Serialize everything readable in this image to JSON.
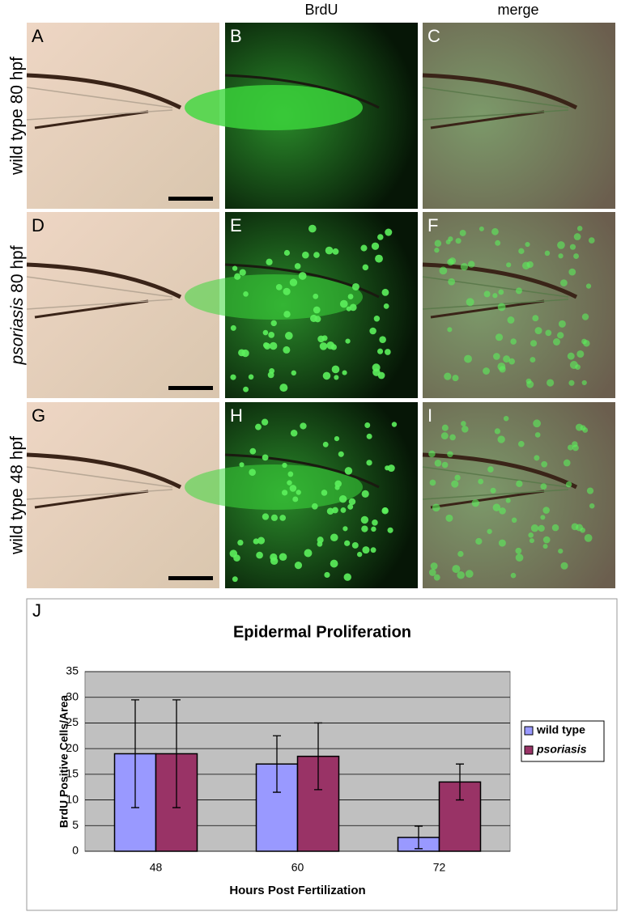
{
  "figure": {
    "column_headers": [
      "BrdU",
      "merge"
    ],
    "row_labels": [
      {
        "text": "wild type 80 hpf"
      },
      {
        "italic": "psoriasis",
        "text": "80 hpf"
      },
      {
        "text": "wild type 48 hpf"
      }
    ],
    "panels": [
      "A",
      "B",
      "C",
      "D",
      "E",
      "F",
      "G",
      "H",
      "I"
    ]
  },
  "chart_data": {
    "type": "bar",
    "panel": "J",
    "title": "Epidermal Proliferation",
    "x_label": "Hours Post Fertilization",
    "y_label": "BrdU Positive Cells/Area",
    "categories": [
      "48",
      "60",
      "72"
    ],
    "series": [
      {
        "name": "wild type",
        "color": "#9999ff",
        "font_style": "normal",
        "values": [
          19,
          17,
          2.7
        ],
        "errors": [
          10.5,
          5.5,
          2.2
        ]
      },
      {
        "name": "psoriasis",
        "color": "#993366",
        "font_style": "italic",
        "values": [
          19,
          18.5,
          13.5
        ],
        "errors": [
          10.5,
          6.5,
          3.5
        ]
      }
    ],
    "ylim": [
      0,
      35
    ],
    "yticks": [
      0,
      5,
      10,
      15,
      20,
      25,
      30,
      35
    ],
    "grid": true,
    "legend": "right"
  }
}
